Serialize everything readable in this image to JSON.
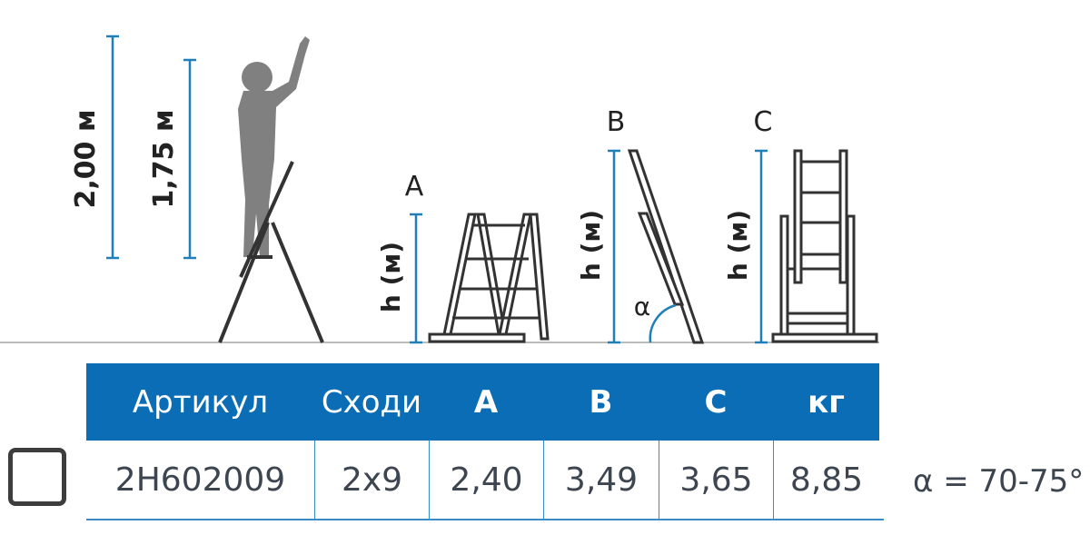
{
  "diagram": {
    "height_total": "2,00 м",
    "height_person": "1,75 м",
    "ladder_labels": [
      "A",
      "B",
      "C"
    ],
    "height_axis_label": "h (м)",
    "angle_symbol": "α",
    "accent_color": "#0a6db5"
  },
  "table": {
    "headers": [
      "Артикул",
      "Сходи",
      "A",
      "B",
      "C",
      "кг"
    ],
    "rows": [
      [
        "2H602009",
        "2x9",
        "2,40",
        "3,49",
        "3,65",
        "8,85"
      ]
    ]
  },
  "angle_note": "α = 70-75°"
}
